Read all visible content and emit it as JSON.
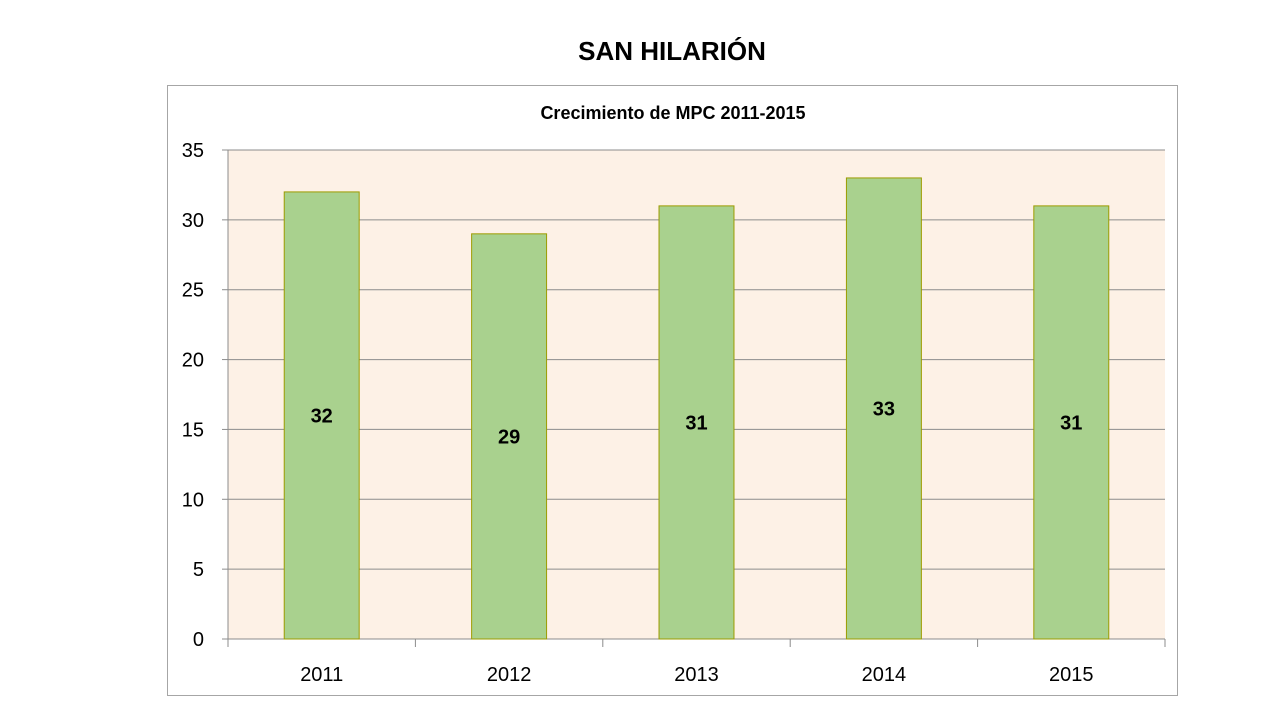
{
  "slide": {
    "title": "SAN HILARIÓN"
  },
  "chart_data": {
    "type": "bar",
    "title": "Crecimiento de MPC 2011-2015",
    "xlabel": "",
    "ylabel": "",
    "categories": [
      "2011",
      "2012",
      "2013",
      "2014",
      "2015"
    ],
    "values": [
      32,
      29,
      31,
      33,
      31
    ],
    "data_labels": [
      "32",
      "29",
      "31",
      "33",
      "31"
    ],
    "ylim": [
      0,
      35
    ],
    "y_ticks": [
      0,
      5,
      10,
      15,
      20,
      25,
      30,
      35
    ],
    "grid": true,
    "legend": "none",
    "colors": {
      "bar_fill": "#a9d18e",
      "bar_stroke": "#9c9c00",
      "plot_background": "#fdf1e6",
      "gridline": "#8c8c8c",
      "axis": "#8c8c8c"
    }
  }
}
